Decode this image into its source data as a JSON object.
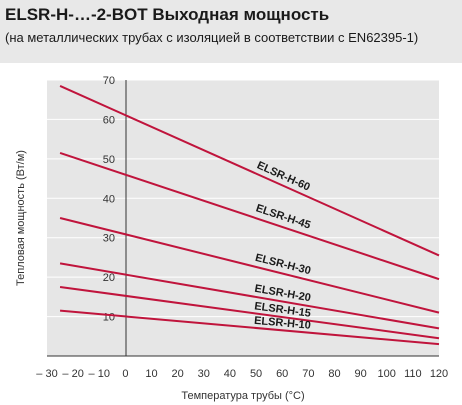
{
  "header": {
    "title": "ELSR-H-…-2-BOT Выходная мощность",
    "subtitle": "(на металлических трубах с изоляцией в соответствии с EN62395-1)"
  },
  "chart_data": {
    "type": "line",
    "xlabel": "Температура трубы (°С)",
    "ylabel": "Тепловая мощность (Вт/м)",
    "xlim": [
      -30,
      120
    ],
    "ylim": [
      0,
      70
    ],
    "xticks": [
      -30,
      -20,
      -10,
      0,
      10,
      20,
      30,
      40,
      50,
      60,
      70,
      80,
      90,
      100,
      110,
      120
    ],
    "yticks": [
      10,
      20,
      30,
      40,
      50,
      60,
      70
    ],
    "xtick_labels": [
      "– 30",
      "– 20",
      "– 10",
      "0",
      "10",
      "20",
      "30",
      "40",
      "50",
      "60",
      "70",
      "80",
      "90",
      "100",
      "110",
      "120"
    ],
    "grid": "horizontal",
    "line_color": "#c0143c",
    "series": [
      {
        "name": "ELSR-H-60",
        "x": [
          -25,
          120
        ],
        "y": [
          68.5,
          25.5
        ]
      },
      {
        "name": "ELSR-H-45",
        "x": [
          -25,
          120
        ],
        "y": [
          51.5,
          19.5
        ]
      },
      {
        "name": "ELSR-H-30",
        "x": [
          -25,
          120
        ],
        "y": [
          35,
          11
        ]
      },
      {
        "name": "ELSR-H-20",
        "x": [
          -25,
          120
        ],
        "y": [
          23.5,
          7
        ]
      },
      {
        "name": "ELSR-H-15",
        "x": [
          -25,
          120
        ],
        "y": [
          17.5,
          4.5
        ]
      },
      {
        "name": "ELSR-H-10",
        "x": [
          -25,
          120
        ],
        "y": [
          11.5,
          3
        ]
      }
    ]
  }
}
